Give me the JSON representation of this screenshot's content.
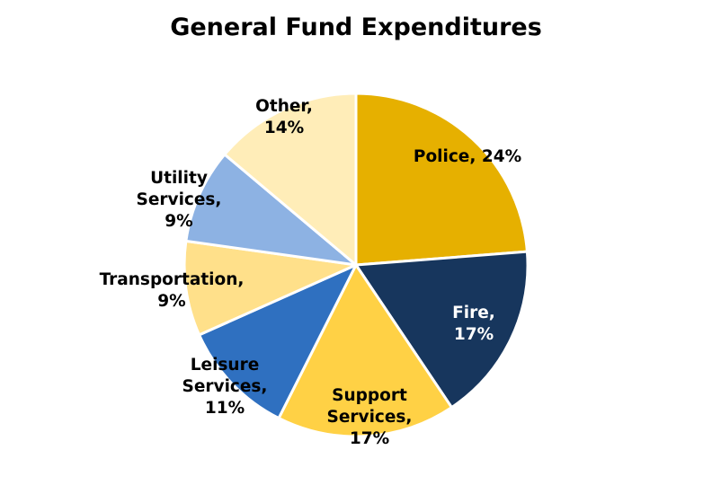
{
  "chart_data": {
    "type": "pie",
    "title": "General Fund Expenditures",
    "slices": [
      {
        "label": "Police, 24%",
        "name": "Police",
        "value": 24,
        "color": "#E6B000",
        "text_color": "#000000"
      },
      {
        "label": "Fire, 17%",
        "name": "Fire",
        "value": 17,
        "color": "#17365D",
        "text_color": "#FFFFFF"
      },
      {
        "label": "Support Services, 17%",
        "name": "Support Services",
        "value": 17,
        "color": "#FFD145",
        "text_color": "#000000"
      },
      {
        "label": "Leisure Services, 11%",
        "name": "Leisure Services",
        "value": 11,
        "color": "#2F70C0",
        "text_color": "#000000"
      },
      {
        "label": "Transportation, 9%",
        "name": "Transportation",
        "value": 9,
        "color": "#FFE08A",
        "text_color": "#000000"
      },
      {
        "label": "Utility Services, 9%",
        "name": "Utility Services",
        "value": 9,
        "color": "#8DB2E3",
        "text_color": "#000000"
      },
      {
        "label": "Other, 14%",
        "name": "Other",
        "value": 14,
        "color": "#FFEDB8",
        "text_color": "#000000"
      }
    ]
  }
}
